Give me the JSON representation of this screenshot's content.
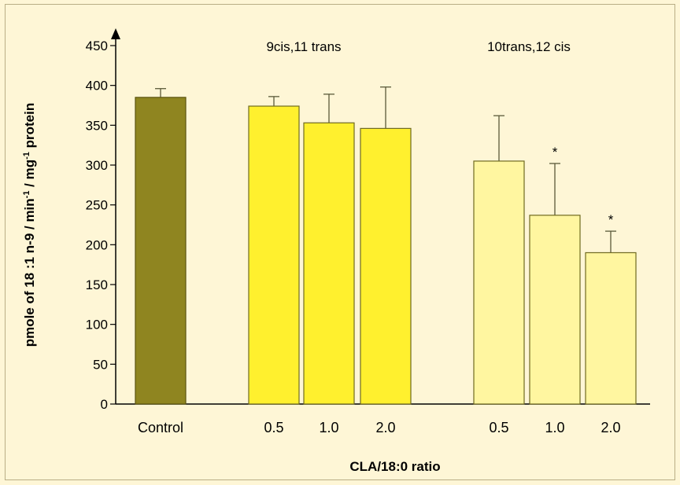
{
  "chart_data": {
    "type": "bar",
    "title": "",
    "xlabel": "CLA/18:0 ratio",
    "ylabel": {
      "parts": [
        {
          "text": "pmole of 18 :1 n-9 / min",
          "sup": false
        },
        {
          "text": "-1",
          "sup": true
        },
        {
          "text": " / mg",
          "sup": false
        },
        {
          "text": "-1",
          "sup": true
        },
        {
          "text": " protein",
          "sup": false
        }
      ]
    },
    "ylim": [
      0,
      450
    ],
    "yticks": [
      "0",
      "50",
      "100",
      "150",
      "200",
      "250",
      "300",
      "350",
      "400",
      "450"
    ],
    "grid": false,
    "groups": [
      {
        "label": "",
        "bar_color": "#8f8520",
        "edge_color": "#5a5410"
      },
      {
        "label": "9cis,11 trans",
        "bar_color": "#fff02e",
        "edge_color": "#6f6a20"
      },
      {
        "label": "10trans,12 cis",
        "bar_color": "#fff6a0",
        "edge_color": "#6f6a20"
      }
    ],
    "bars": [
      {
        "category": "Control",
        "group": 0,
        "value": 385,
        "error": 11,
        "significant": false
      },
      {
        "category": "0.5",
        "group": 1,
        "value": 374,
        "error": 12,
        "significant": false
      },
      {
        "category": "1.0",
        "group": 1,
        "value": 353,
        "error": 36,
        "significant": false
      },
      {
        "category": "2.0",
        "group": 1,
        "value": 346,
        "error": 52,
        "significant": false
      },
      {
        "category": "0.5",
        "group": 2,
        "value": 305,
        "error": 57,
        "significant": false
      },
      {
        "category": "1.0",
        "group": 2,
        "value": 237,
        "error": 65,
        "significant": true
      },
      {
        "category": "2.0",
        "group": 2,
        "value": 190,
        "error": 27,
        "significant": true
      }
    ],
    "significance_marker": "*"
  }
}
